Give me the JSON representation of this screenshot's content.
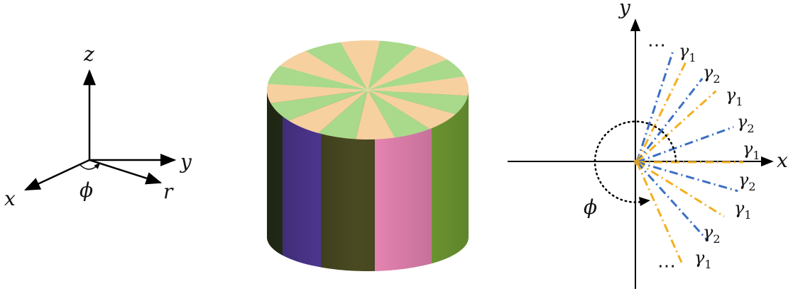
{
  "left_axes": {
    "z_label": "z",
    "y_label": "y",
    "x_label": "x",
    "r_label": "r",
    "angle_label": "ϕ"
  },
  "cylinder": {
    "sector_colors": [
      "#a9d98a",
      "#f7d0a0"
    ],
    "sector_count": 16,
    "side_bands": [
      "#2e3a1e",
      "#5a3fa8",
      "#4a4a22",
      "#ee88b8",
      "#7fb03a"
    ]
  },
  "right_plot": {
    "x_label": "x",
    "y_label": "y",
    "angle_label": "ϕ",
    "ellipsis_top": "⋯",
    "ellipsis_bottom": "⋯",
    "gamma_color_1": "#3b6fc4",
    "gamma_color_2": "#f2b01e",
    "labels": [
      {
        "base": "γ",
        "sub": "1"
      },
      {
        "base": "γ",
        "sub": "2"
      },
      {
        "base": "γ",
        "sub": "1"
      },
      {
        "base": "γ",
        "sub": "2"
      },
      {
        "base": "γ",
        "sub": "1"
      },
      {
        "base": "γ",
        "sub": "2"
      },
      {
        "base": "γ",
        "sub": "1"
      },
      {
        "base": "γ",
        "sub": "2"
      },
      {
        "base": "γ",
        "sub": "1"
      }
    ]
  }
}
